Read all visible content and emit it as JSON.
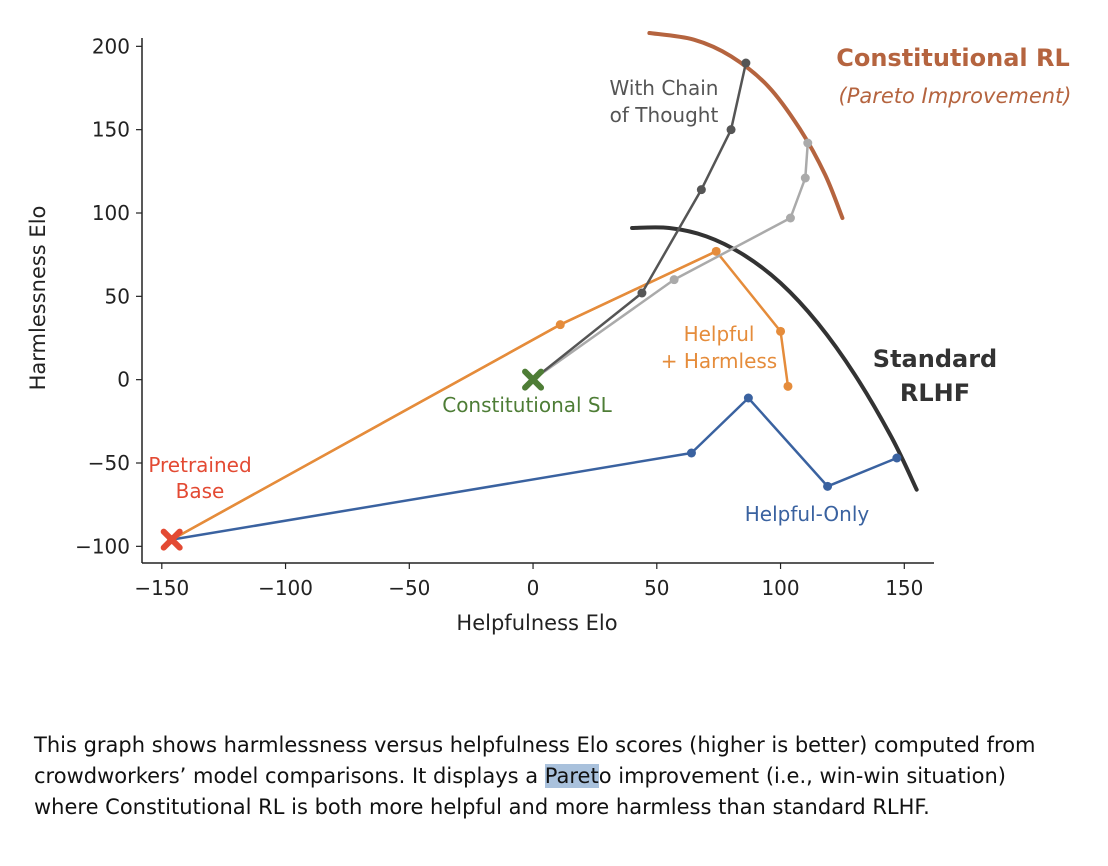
{
  "chart_data": {
    "type": "line",
    "xlabel": "Helpfulness Elo",
    "ylabel": "Harmlessness Elo",
    "xlim": [
      -158,
      162
    ],
    "ylim": [
      -110,
      205
    ],
    "xticks": [
      -150,
      -100,
      -50,
      0,
      50,
      100,
      150
    ],
    "yticks": [
      -100,
      -50,
      0,
      50,
      100,
      150,
      200
    ],
    "xtick_labels": [
      "−150",
      "−100",
      "−50",
      "0",
      "50",
      "100",
      "150"
    ],
    "ytick_labels": [
      "−100",
      "−50",
      "0",
      "50",
      "100",
      "150",
      "200"
    ],
    "grid": false,
    "series": [
      {
        "name": "Helpful-Only",
        "color": "#3a62a0",
        "line_points": [
          [
            -146,
            -96
          ],
          [
            64,
            -44
          ]
        ],
        "x": [
          64,
          87,
          119,
          147
        ],
        "y": [
          -44,
          -11,
          -64,
          -47
        ]
      },
      {
        "name": "Helpful + Harmless",
        "color": "#e58c3b",
        "line_points": [
          [
            -146,
            -96
          ],
          [
            11,
            33
          ],
          [
            74,
            77
          ]
        ],
        "x": [
          -146,
          11,
          74,
          100,
          103
        ],
        "y": [
          -96,
          33,
          77,
          29,
          -4
        ]
      },
      {
        "name": "",
        "color": "#aaaaaa",
        "line_points": [
          [
            0,
            0
          ],
          [
            57,
            60
          ]
        ],
        "x": [
          57,
          104,
          110,
          111
        ],
        "y": [
          60,
          97,
          121,
          142
        ]
      },
      {
        "name": "With Chain of Thought",
        "color": "#555555",
        "line_points": [
          [
            0,
            0
          ],
          [
            44,
            52
          ]
        ],
        "x": [
          44,
          68,
          80,
          86
        ],
        "y": [
          52,
          114,
          150,
          190
        ]
      }
    ],
    "markers": [
      {
        "name": "Pretrained Base",
        "x": -146,
        "y": -96,
        "color": "#e34a33"
      },
      {
        "name": "Constitutional SL",
        "x": 0,
        "y": 0,
        "color": "#4e7d36"
      }
    ],
    "frontiers": [
      {
        "name": "Standard RLHF",
        "color": "#333333",
        "x": [
          40,
          55,
          70,
          85,
          100,
          115,
          130,
          145,
          155
        ],
        "y": [
          91,
          91,
          86,
          75,
          58,
          34,
          3,
          -35,
          -66
        ]
      },
      {
        "name": "Constitutional RL",
        "color": "#b5643f",
        "x": [
          47,
          65,
          80,
          95,
          108,
          118,
          125
        ],
        "y": [
          208,
          204,
          194,
          176,
          150,
          123,
          97
        ]
      }
    ],
    "annotations": {
      "helpful_only": "Helpful-Only",
      "helpful_harmless_1": "Helpful",
      "helpful_harmless_2": "+ Harmless",
      "cot_1": "With Chain",
      "cot_2": "of Thought",
      "const_sl": "Constitutional SL",
      "pretrained_1": "Pretrained",
      "pretrained_2": "Base",
      "rlhf_1": "Standard",
      "rlhf_2": "RLHF",
      "crl_title": "Constitutional RL",
      "crl_sub": "(Pareto Improvement)"
    }
  },
  "caption": {
    "text_before": "This graph shows harmlessness versus helpfulness Elo scores (higher is better) computed from crowdworkers’ model comparisons. It displays a ",
    "highlight": "Paret",
    "text_after": "o improvement (i.e., win-win situation) where Constitutional RL is both more helpful and more harmless than standard RLHF."
  }
}
